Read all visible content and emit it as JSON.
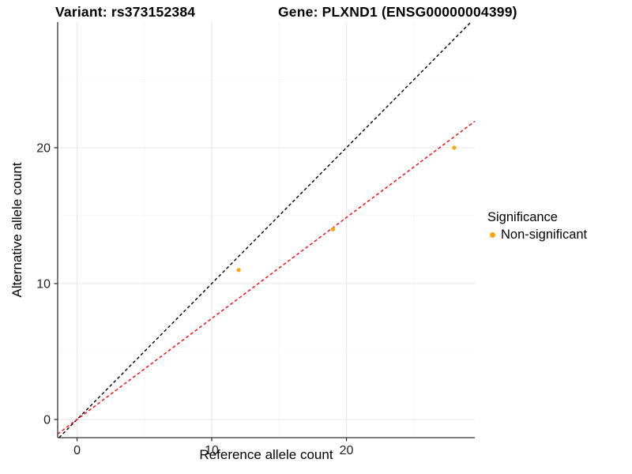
{
  "title": {
    "variant": "Variant: rs373152384",
    "gene": "Gene: PLXND1 (ENSG00000004399)"
  },
  "axes": {
    "x_label": "Reference allele count",
    "y_label": "Alternative allele count"
  },
  "legend": {
    "title": "Significance",
    "items": [
      {
        "label": "Non-significant",
        "color": "#FFA500",
        "marker": "circle-icon"
      }
    ]
  },
  "colors": {
    "background": "#FFFFFF",
    "point": "#FFA500",
    "identity_line": "#000000",
    "fit_line": "#FF0000",
    "axis_line": "#333333",
    "tick_text": "#1F1F1F",
    "grid_major": "#E8E8E8",
    "grid_minor": "#F4F4F4"
  },
  "chart_data": {
    "type": "scatter",
    "title": "Variant: rs373152384 | Gene: PLXND1 (ENSG00000004399)",
    "xlabel": "Reference allele count",
    "ylabel": "Alternative allele count",
    "xlim": [
      -1.44,
      29.53
    ],
    "ylim": [
      -1.34,
      29.24
    ],
    "x_breaks": [
      0,
      10,
      20
    ],
    "y_breaks": [
      0,
      10,
      20
    ],
    "x_tick_labels": [
      "0",
      "10",
      "20"
    ],
    "y_tick_labels": [
      "0",
      "10",
      "20"
    ],
    "x_minor_breaks": [
      5,
      15,
      25
    ],
    "y_minor_breaks": [
      5,
      15,
      25
    ],
    "grid": true,
    "legend_position": "right",
    "series": [
      {
        "name": "Non-significant",
        "color": "#FFA500",
        "points": [
          [
            12,
            11
          ],
          [
            19,
            14
          ],
          [
            28,
            20
          ]
        ]
      }
    ],
    "lines": [
      {
        "name": "identity-line",
        "slope": 1,
        "intercept": 0,
        "color": "#000000",
        "dashed": true
      },
      {
        "name": "fit-line",
        "slope": 0.743,
        "intercept": 0,
        "color": "#FF0000",
        "dashed": true
      }
    ]
  }
}
